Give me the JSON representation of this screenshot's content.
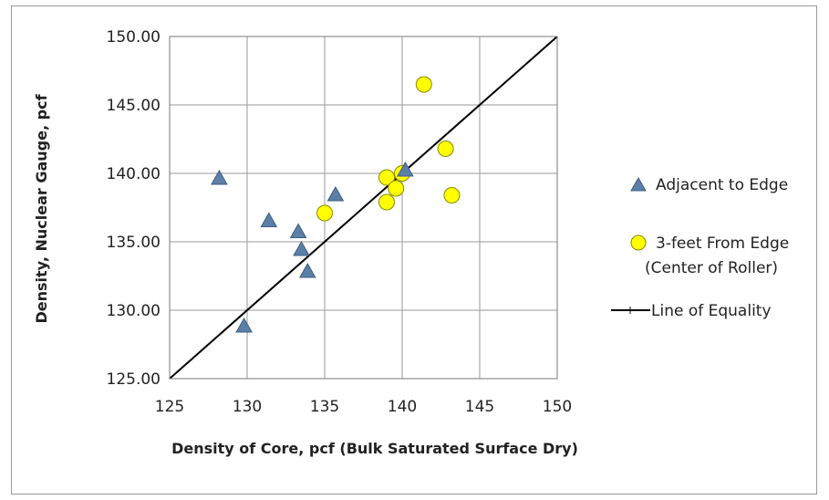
{
  "chart_data": {
    "type": "scatter",
    "xlabel": "Density of Core, pcf (Bulk Saturated Surface Dry)",
    "ylabel": "Density, Nuclear Gauge, pcf",
    "xlim": [
      125,
      150
    ],
    "ylim": [
      125,
      150
    ],
    "x_ticks": [
      "125",
      "130",
      "135",
      "140",
      "145",
      "150"
    ],
    "y_ticks": [
      "125.00",
      "130.00",
      "135.00",
      "140.00",
      "145.00",
      "150.00"
    ],
    "grid": true,
    "legend_position": "right",
    "series": [
      {
        "name": "Adjacent to Edge",
        "marker": "triangle",
        "color": "#5b7fa6",
        "points": [
          [
            128.2,
            139.6
          ],
          [
            129.8,
            128.8
          ],
          [
            131.4,
            136.5
          ],
          [
            133.3,
            135.7
          ],
          [
            133.5,
            134.4
          ],
          [
            133.9,
            132.8
          ],
          [
            135.7,
            138.4
          ],
          [
            140.2,
            140.2
          ]
        ]
      },
      {
        "name": "3-feet From Edge",
        "name_line2": "(Center of Roller)",
        "marker": "circle",
        "color": "#ffff00",
        "points": [
          [
            135.0,
            137.1
          ],
          [
            139.0,
            137.9
          ],
          [
            139.0,
            139.7
          ],
          [
            139.6,
            138.9
          ],
          [
            140.0,
            140.0
          ],
          [
            141.4,
            146.5
          ],
          [
            142.8,
            141.8
          ],
          [
            143.2,
            138.4
          ]
        ]
      },
      {
        "name": "Line of Equality",
        "type": "line",
        "color": "#000000",
        "points": [
          [
            125,
            125
          ],
          [
            150,
            150
          ]
        ]
      }
    ]
  }
}
